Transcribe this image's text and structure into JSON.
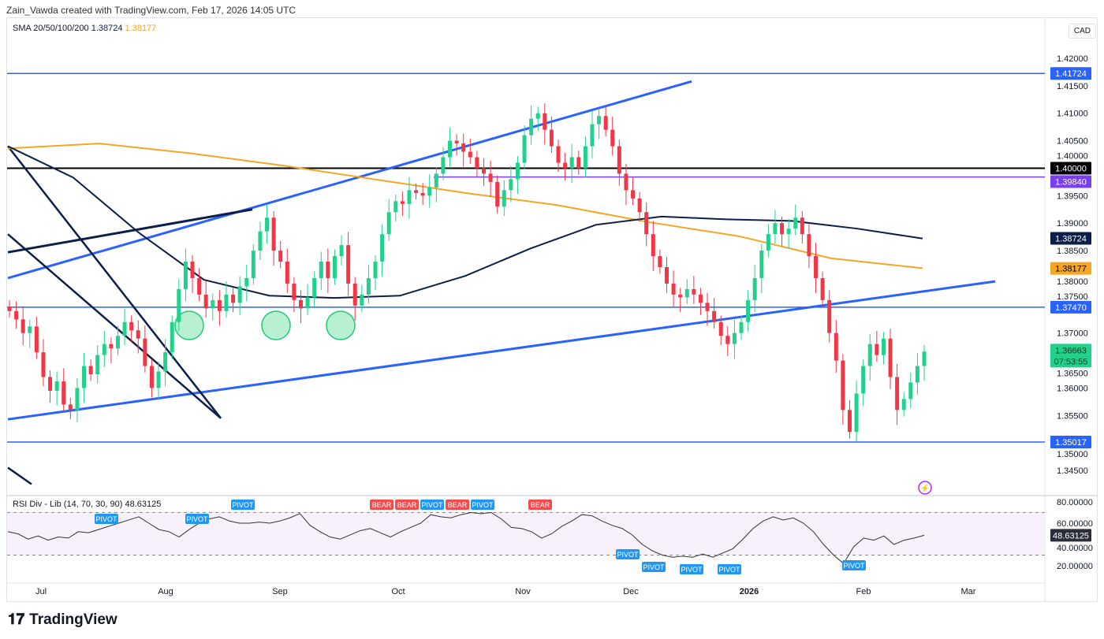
{
  "header": {
    "credit": "Zain_Vawda created with TradingView.com, Feb 17, 2026 14:05 UTC"
  },
  "legend": {
    "label": "SMA 20/50/100/200",
    "v100": "1.38724",
    "v200": "1.38177"
  },
  "currency": "CAD",
  "brand": "TradingView",
  "colors": {
    "up": "#22d18b",
    "down": "#f23645",
    "sma100": "#0c1f4a",
    "sma200": "#f5a623",
    "trend": "#2962ff",
    "pivot": "#2196f3",
    "bear": "#f44c4c",
    "purple": "#7b3ff2"
  },
  "chart_data": [
    {
      "type": "candlestick",
      "title": "",
      "x_ticks": [
        "Jul",
        "Aug",
        "Sep",
        "Oct",
        "Nov",
        "Dec",
        "2026",
        "Feb",
        "Mar"
      ],
      "y_ticks": [
        "1.42000",
        "1.41500",
        "1.41000",
        "1.40500",
        "1.40000",
        "1.39500",
        "1.39000",
        "1.38500",
        "1.38000",
        "1.37500",
        "1.37000",
        "1.36500",
        "1.36000",
        "1.35500",
        "1.35000",
        "1.34500"
      ],
      "ylim": [
        1.3415,
        1.4225
      ],
      "closes": [
        1.374,
        1.3725,
        1.37,
        1.3712,
        1.3665,
        1.362,
        1.3595,
        1.3612,
        1.357,
        1.356,
        1.36,
        1.364,
        1.3625,
        1.366,
        1.368,
        1.3672,
        1.3695,
        1.372,
        1.3705,
        1.369,
        1.364,
        1.36,
        1.363,
        1.3665,
        1.372,
        1.378,
        1.383,
        1.38,
        1.377,
        1.3745,
        1.376,
        1.374,
        1.377,
        1.3755,
        1.3785,
        1.38,
        1.385,
        1.3885,
        1.391,
        1.385,
        1.383,
        1.379,
        1.376,
        1.3745,
        1.3765,
        1.38,
        1.383,
        1.38,
        1.384,
        1.386,
        1.379,
        1.375,
        1.377,
        1.38,
        1.383,
        1.388,
        1.392,
        1.394,
        1.3935,
        1.396,
        1.3955,
        1.395,
        1.3965,
        1.399,
        1.402,
        1.405,
        1.4045,
        1.403,
        1.402,
        1.4,
        1.399,
        1.3975,
        1.393,
        1.396,
        1.398,
        1.401,
        1.406,
        1.409,
        1.41,
        1.407,
        1.404,
        1.401,
        1.4,
        1.402,
        1.4,
        1.404,
        1.408,
        1.4095,
        1.407,
        1.404,
        1.399,
        1.396,
        1.3945,
        1.392,
        1.388,
        1.384,
        1.382,
        1.379,
        1.377,
        1.3765,
        1.378,
        1.377,
        1.3755,
        1.374,
        1.372,
        1.3695,
        1.368,
        1.37,
        1.372,
        1.376,
        1.38,
        1.385,
        1.388,
        1.39,
        1.388,
        1.389,
        1.391,
        1.388,
        1.384,
        1.38,
        1.376,
        1.37,
        1.365,
        1.356,
        1.352,
        1.359,
        1.364,
        1.368,
        1.366,
        1.369,
        1.362,
        1.356,
        1.358,
        1.361,
        1.364,
        1.36663
      ],
      "sma100": [
        1.404,
        1.3983,
        1.3883,
        1.3797,
        1.3768,
        1.3764,
        1.3768,
        1.3804,
        1.3854,
        1.3897,
        1.3912,
        1.3907,
        1.3904,
        1.389,
        1.3872
      ],
      "sma200": [
        1.4036,
        1.4045,
        1.4027,
        1.4005,
        1.398,
        1.3955,
        1.3933,
        1.3902,
        1.3876,
        1.3836,
        1.3818
      ],
      "levels": [
        {
          "value": "1.41724",
          "color": "#2962ff"
        },
        {
          "value": "1.40000",
          "color": "#000000"
        },
        {
          "value": "1.39840",
          "color": "#7b3ff2"
        },
        {
          "value": "1.38724",
          "color": "#0c1f4a"
        },
        {
          "value": "1.38177",
          "color": "#f5a623"
        },
        {
          "value": "1.37470",
          "color": "#2962ff"
        },
        {
          "value": "1.35017",
          "color": "#2962ff"
        }
      ],
      "last_price": {
        "value": "1.36663",
        "countdown": "07:53:55"
      }
    },
    {
      "type": "line",
      "title": "RSI Div - Lib (14, 70, 30, 90)",
      "last": "48.63125",
      "y_ticks": [
        "80.00000",
        "60.00000",
        "40.00000",
        "20.00000"
      ],
      "bands": [
        30,
        70
      ],
      "values": [
        52,
        50,
        45,
        48,
        44,
        47,
        46,
        52,
        51,
        54,
        57,
        60,
        63,
        66,
        60,
        54,
        52,
        47,
        54,
        60,
        64,
        66,
        62,
        60,
        60,
        61,
        60,
        62,
        65,
        69,
        58,
        52,
        47,
        45,
        49,
        53,
        55,
        51,
        47,
        52,
        56,
        60,
        68,
        66,
        65,
        68,
        70,
        69,
        70,
        64,
        56,
        55,
        52,
        46,
        50,
        57,
        62,
        68,
        67,
        62,
        58,
        55,
        49,
        40,
        34,
        30,
        28,
        29,
        28,
        31,
        28,
        32,
        36,
        45,
        55,
        62,
        66,
        63,
        65,
        60,
        52,
        40,
        30,
        22,
        38,
        46,
        44,
        48,
        40,
        44,
        46,
        48.6
      ],
      "markers": [
        "PIVOT",
        "PIVOT",
        "PIVOT",
        "BEAR",
        "BEAR",
        "PIVOT",
        "BEAR",
        "PIVOT",
        "BEAR",
        "PIVOT",
        "PIVOT",
        "PIVOT",
        "PIVOT",
        "PIVOT"
      ]
    }
  ]
}
